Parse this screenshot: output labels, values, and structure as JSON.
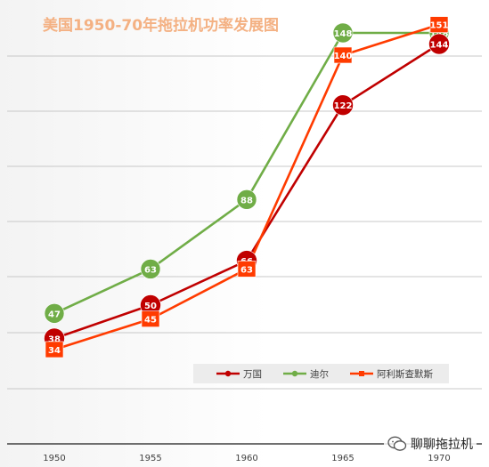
{
  "chart_data": {
    "type": "line",
    "title": "美国1950-70年拖拉机功率发展图",
    "xlabel": "",
    "ylabel": "",
    "categories": [
      "1950",
      "1955",
      "1960",
      "1965",
      "1970"
    ],
    "ylim": [
      0,
      155
    ],
    "grid": true,
    "legend_position": "bottom-right",
    "series": [
      {
        "name": "万国",
        "values": [
          38,
          50,
          66,
          122,
          144
        ],
        "color": "#c00000",
        "marker": "circle"
      },
      {
        "name": "迪尔",
        "values": [
          47,
          63,
          88,
          148,
          148
        ],
        "color": "#70ad47",
        "marker": "circle"
      },
      {
        "name": "阿利斯查默斯",
        "values": [
          34,
          45,
          63,
          140,
          151
        ],
        "color": "#ff3b00",
        "marker": "square"
      }
    ]
  },
  "watermark": {
    "text": "聊聊拖拉机",
    "icon": "wechat-icon"
  }
}
